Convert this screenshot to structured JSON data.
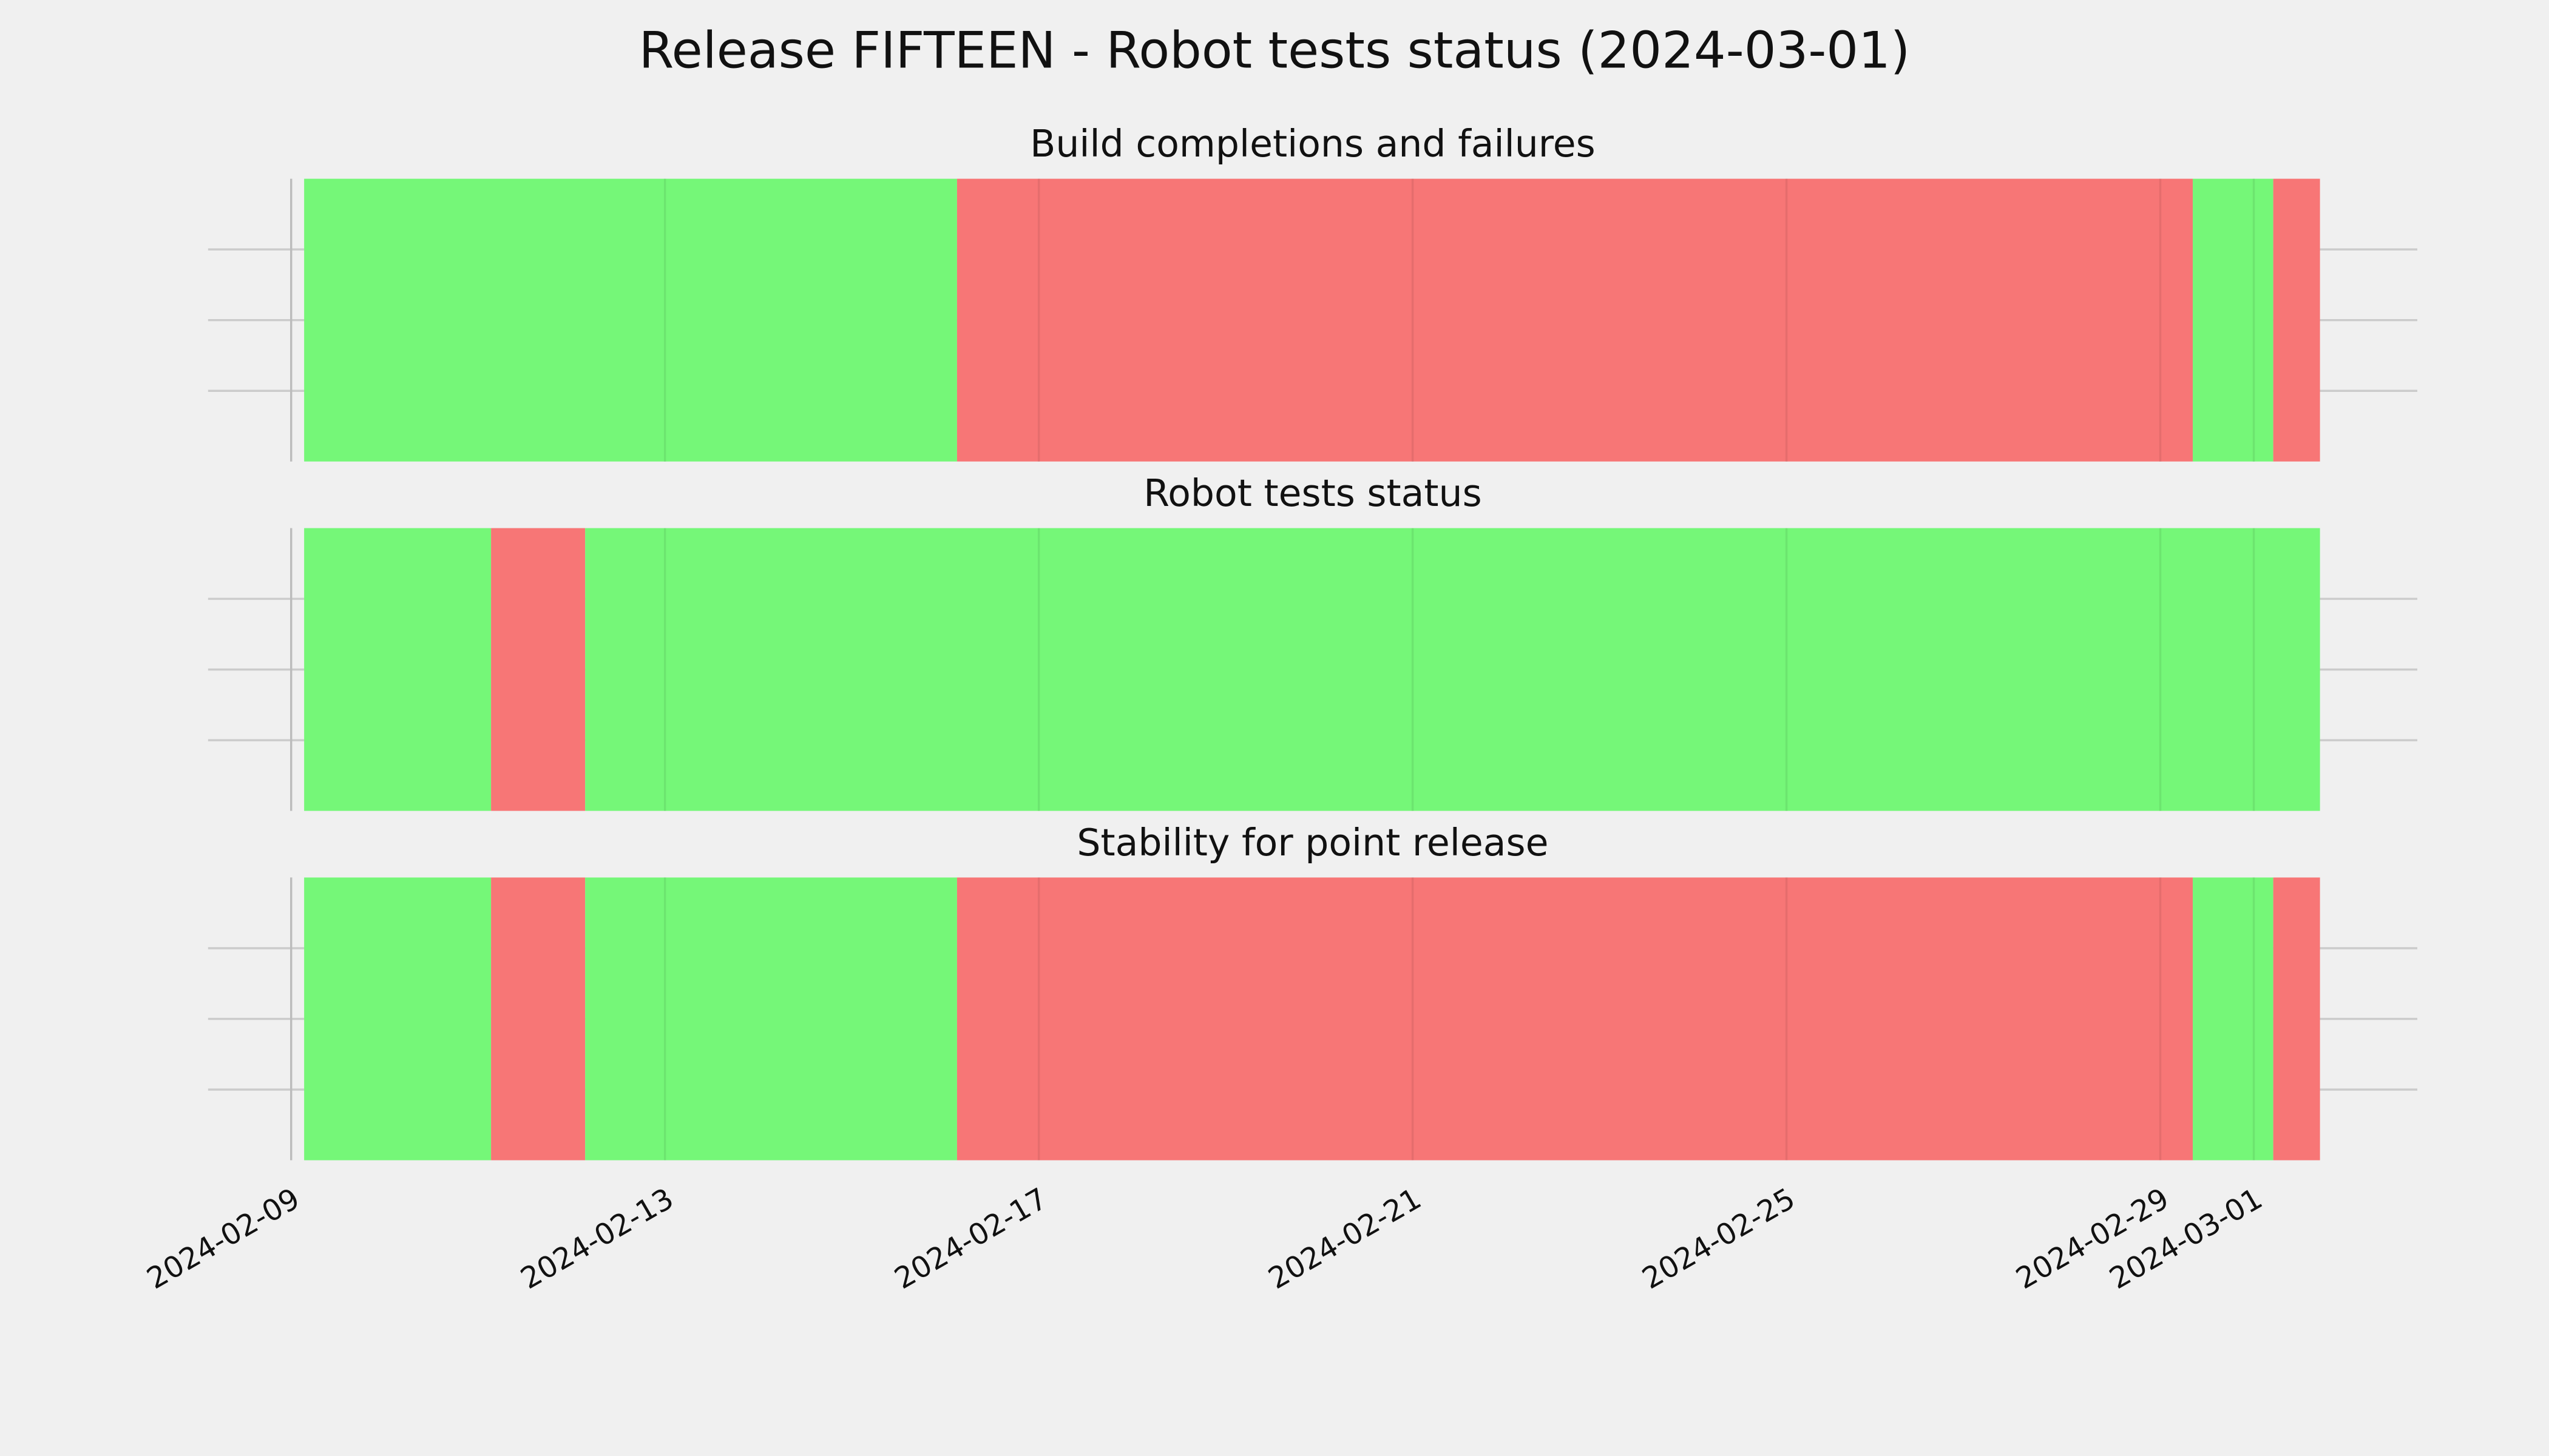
{
  "title": "Release FIFTEEN - Robot tests status (2024-03-01)",
  "chart_data": [
    {
      "type": "span",
      "title": "Build completions and failures",
      "xlim": [
        "2024-02-08T02:40Z",
        "2024-03-02T18:00Z"
      ],
      "xticks": [
        "2024-02-09",
        "2024-02-13",
        "2024-02-17",
        "2024-02-21",
        "2024-02-25",
        "2024-02-29",
        "2024-03-01"
      ],
      "ylim": [
        0,
        1
      ],
      "yticks": [
        0.25,
        0.5,
        0.75
      ],
      "grid": true,
      "spans": [
        {
          "start": "2024-02-09T03:20Z",
          "end": "2024-02-16T03:00Z",
          "color": "#75f778"
        },
        {
          "start": "2024-02-16T03:00Z",
          "end": "2024-02-29T08:20Z",
          "color": "#f77676"
        },
        {
          "start": "2024-02-29T08:20Z",
          "end": "2024-03-01T05:00Z",
          "color": "#75f778"
        },
        {
          "start": "2024-03-01T05:00Z",
          "end": "2024-03-01T17:00Z",
          "color": "#f77676"
        }
      ]
    },
    {
      "type": "span",
      "title": "Robot tests status",
      "xlim": [
        "2024-02-08T02:40Z",
        "2024-03-02T18:00Z"
      ],
      "xticks": [
        "2024-02-09",
        "2024-02-13",
        "2024-02-17",
        "2024-02-21",
        "2024-02-25",
        "2024-02-29",
        "2024-03-01"
      ],
      "ylim": [
        0,
        1
      ],
      "yticks": [
        0.25,
        0.5,
        0.75
      ],
      "grid": true,
      "spans": [
        {
          "start": "2024-02-09T03:20Z",
          "end": "2024-02-11T03:20Z",
          "color": "#75f778"
        },
        {
          "start": "2024-02-11T03:20Z",
          "end": "2024-02-12T03:30Z",
          "color": "#f77676"
        },
        {
          "start": "2024-02-12T03:30Z",
          "end": "2024-03-01T17:00Z",
          "color": "#75f778"
        }
      ]
    },
    {
      "type": "span",
      "title": "Stability for point release",
      "xlim": [
        "2024-02-08T02:40Z",
        "2024-03-02T18:00Z"
      ],
      "xticks": [
        "2024-02-09",
        "2024-02-13",
        "2024-02-17",
        "2024-02-21",
        "2024-02-25",
        "2024-02-29",
        "2024-03-01"
      ],
      "ylim": [
        0,
        1
      ],
      "yticks": [
        0.25,
        0.5,
        0.75
      ],
      "grid": true,
      "spans": [
        {
          "start": "2024-02-09T03:20Z",
          "end": "2024-02-11T03:20Z",
          "color": "#75f778"
        },
        {
          "start": "2024-02-11T03:20Z",
          "end": "2024-02-12T03:30Z",
          "color": "#f77676"
        },
        {
          "start": "2024-02-12T03:30Z",
          "end": "2024-02-16T03:00Z",
          "color": "#75f778"
        },
        {
          "start": "2024-02-16T03:00Z",
          "end": "2024-02-29T08:20Z",
          "color": "#f77676"
        },
        {
          "start": "2024-02-29T08:20Z",
          "end": "2024-03-01T05:00Z",
          "color": "#75f778"
        },
        {
          "start": "2024-03-01T05:00Z",
          "end": "2024-03-01T17:00Z",
          "color": "#f77676"
        }
      ]
    }
  ]
}
